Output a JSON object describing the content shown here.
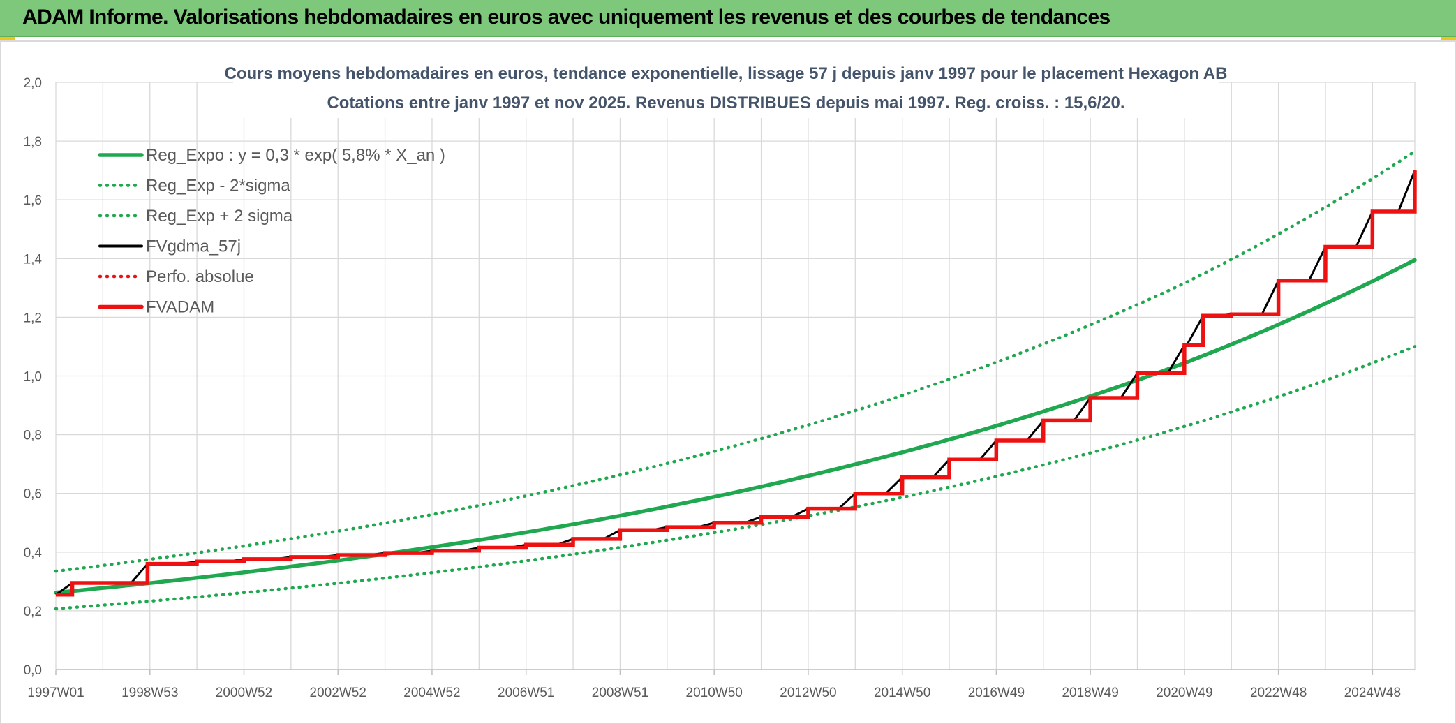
{
  "header": {
    "title": "ADAM Informe. Valorisations hebdomadaires en euros avec uniquement les revenus et des courbes de tendances"
  },
  "chart_data": {
    "type": "line",
    "title": "Cours moyens hebdomadaires en euros, tendance exponentielle, lissage 57 j depuis janv 1997 pour le placement Hexagon AB",
    "subtitle": "Cotations entre janv 1997 et nov 2025. Revenus DISTRIBUES depuis mai 1997. Reg. croiss. : 15,6/20.",
    "xlabel": "",
    "ylabel": "",
    "x_range": [
      1997.0,
      2025.9
    ],
    "ylim": [
      0,
      2.0
    ],
    "y_ticks": [
      "0,0",
      "0,2",
      "0,4",
      "0,6",
      "0,8",
      "1,0",
      "1,2",
      "1,4",
      "1,6",
      "1,8",
      "2,0"
    ],
    "x_tick_labels": [
      "1997W01",
      "1998W53",
      "2000W52",
      "2002W52",
      "2004W52",
      "2006W51",
      "2008W51",
      "2010W50",
      "2012W50",
      "2014W50",
      "2016W49",
      "2018W49",
      "2020W49",
      "2022W48",
      "2024W48"
    ],
    "x_tick_positions": [
      1997.0,
      1999.0,
      2001.0,
      2003.0,
      2005.0,
      2007.0,
      2009.0,
      2011.0,
      2013.0,
      2015.0,
      2017.0,
      2019.0,
      2021.0,
      2023.0,
      2025.0
    ],
    "grid": true,
    "legend_position": "top-left",
    "series": [
      {
        "name": "Reg_Expo : y = 0,3 * exp( 5,8% *  X_an )",
        "color": "#1fa84f",
        "style": "solid",
        "points": [
          [
            1997.0,
            0.262
          ],
          [
            2001.0,
            0.331
          ],
          [
            2005.0,
            0.417
          ],
          [
            2009.0,
            0.524
          ],
          [
            2013.0,
            0.66
          ],
          [
            2017.0,
            0.83
          ],
          [
            2021.0,
            1.044
          ],
          [
            2025.9,
            1.395
          ]
        ]
      },
      {
        "name": "Reg_Exp - 2*sigma",
        "color": "#1fa84f",
        "style": "dotted",
        "points": [
          [
            1997.0,
            0.207
          ],
          [
            2001.0,
            0.262
          ],
          [
            2005.0,
            0.33
          ],
          [
            2009.0,
            0.416
          ],
          [
            2013.0,
            0.523
          ],
          [
            2017.0,
            0.658
          ],
          [
            2021.0,
            0.828
          ],
          [
            2025.9,
            1.1
          ]
        ]
      },
      {
        "name": "Reg_Exp + 2 sigma",
        "color": "#1fa84f",
        "style": "dotted",
        "points": [
          [
            1997.0,
            0.335
          ],
          [
            2001.0,
            0.421
          ],
          [
            2005.0,
            0.528
          ],
          [
            2009.0,
            0.663
          ],
          [
            2013.0,
            0.833
          ],
          [
            2017.0,
            1.047
          ],
          [
            2021.0,
            1.316
          ],
          [
            2025.9,
            1.765
          ]
        ]
      },
      {
        "name": "FVgdma_57j",
        "color": "#000000",
        "style": "solid",
        "points": [
          [
            1997.0,
            0.255
          ],
          [
            1997.3,
            0.256
          ],
          [
            1997.45,
            0.29
          ],
          [
            1997.6,
            0.296
          ],
          [
            1998.0,
            0.298
          ],
          [
            1998.9,
            0.305
          ],
          [
            1999.05,
            0.35
          ],
          [
            1999.2,
            0.358
          ],
          [
            2025.9,
            1.7
          ]
        ]
      },
      {
        "name": "Perfo. absolue",
        "color": "#e3151a",
        "style": "dotted",
        "points": []
      },
      {
        "name": "FVADAM",
        "color": "#ee1111",
        "style": "step",
        "points": [
          [
            1997.0,
            0.255
          ],
          [
            1997.35,
            0.295
          ],
          [
            1998.95,
            0.36
          ],
          [
            2000.0,
            0.368
          ],
          [
            2001.0,
            0.376
          ],
          [
            2002.0,
            0.383
          ],
          [
            2003.0,
            0.39
          ],
          [
            2004.0,
            0.397
          ],
          [
            2005.0,
            0.405
          ],
          [
            2006.0,
            0.415
          ],
          [
            2007.0,
            0.425
          ],
          [
            2008.0,
            0.445
          ],
          [
            2009.0,
            0.475
          ],
          [
            2010.0,
            0.485
          ],
          [
            2011.0,
            0.5
          ],
          [
            2012.0,
            0.52
          ],
          [
            2013.0,
            0.548
          ],
          [
            2014.0,
            0.6
          ],
          [
            2015.0,
            0.655
          ],
          [
            2016.0,
            0.715
          ],
          [
            2017.0,
            0.78
          ],
          [
            2018.0,
            0.848
          ],
          [
            2019.0,
            0.925
          ],
          [
            2020.0,
            1.01
          ],
          [
            2021.0,
            1.105
          ],
          [
            2021.4,
            1.205
          ],
          [
            2022.0,
            1.21
          ],
          [
            2023.0,
            1.325
          ],
          [
            2024.0,
            1.44
          ],
          [
            2025.0,
            1.56
          ],
          [
            2025.9,
            1.7
          ]
        ]
      }
    ]
  }
}
